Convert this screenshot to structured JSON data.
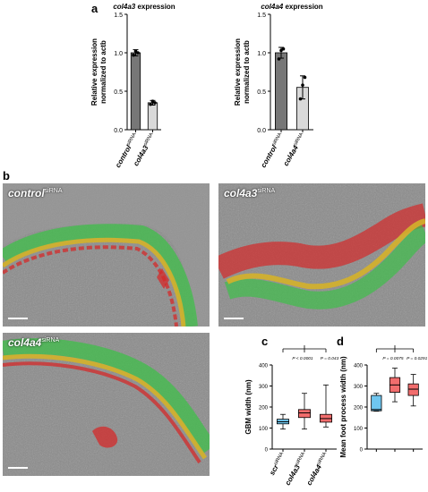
{
  "panel_letters": {
    "a": "a",
    "b": "b",
    "c": "c",
    "d": "d"
  },
  "colors": {
    "dark_bar": "#777777",
    "light_bar": "#d9d9d9",
    "blue_box": "#6fc6ef",
    "red_box": "#f26d6d",
    "em_background": "#8a8a8a",
    "green_overlay": "#3fbf4a",
    "yellow_overlay": "#d4b12a",
    "red_overlay": "#d42a2a"
  },
  "em_panels": [
    {
      "id": "control",
      "label_main": "control",
      "label_sup": "siRNA"
    },
    {
      "id": "col4a3",
      "label_main": "col4a3",
      "label_sup": "siRNA"
    },
    {
      "id": "col4a4",
      "label_main": "col4a4",
      "label_sup": "siRNA"
    }
  ],
  "chart_data": [
    {
      "type": "bar",
      "title": "col4a3 expression",
      "ylabel": "Relative expression normalized to actb",
      "ylim": [
        0,
        1.5
      ],
      "yticks": [
        "0.0",
        "0.5",
        "1.0",
        "1.5"
      ],
      "categories": [
        "control siRNA",
        "col4a3 siRNA"
      ],
      "values": [
        1.0,
        0.35
      ],
      "errors": [
        0.04,
        0.03
      ],
      "points": [
        [
          0.97,
          1.02,
          1.0
        ],
        [
          0.33,
          0.37,
          0.35
        ]
      ]
    },
    {
      "type": "bar",
      "title": "col4a4 expression",
      "ylabel": "Relative expression normalized to actb",
      "ylim": [
        0,
        1.5
      ],
      "yticks": [
        "0.0",
        "0.5",
        "1.0",
        "1.5"
      ],
      "categories": [
        "control siRNA",
        "col4a4 siRNA"
      ],
      "values": [
        1.0,
        0.55
      ],
      "errors": [
        0.07,
        0.15
      ],
      "points": [
        [
          0.92,
          1.03,
          1.05
        ],
        [
          0.4,
          0.58,
          0.68
        ]
      ]
    },
    {
      "type": "box",
      "ylabel": "GBM width (nm)",
      "ylim": [
        0,
        400
      ],
      "yticks": [
        "0",
        "100",
        "200",
        "300",
        "400"
      ],
      "categories": [
        "scr siRNA",
        "col4a3 siRNA",
        "col4a4 siRNA"
      ],
      "boxes": [
        {
          "min": 95,
          "q1": 120,
          "median": 130,
          "q3": 142,
          "max": 165
        },
        {
          "min": 95,
          "q1": 150,
          "median": 172,
          "q3": 188,
          "max": 265
        },
        {
          "min": 105,
          "q1": 128,
          "median": 145,
          "q3": 165,
          "max": 305
        }
      ],
      "annotations": [
        "P < 0.0001",
        "P = 0.043"
      ]
    },
    {
      "type": "box",
      "ylabel": "Mean foot process width (nm)",
      "ylim": [
        0,
        400
      ],
      "yticks": [
        "0",
        "100",
        "200",
        "300",
        "400"
      ],
      "categories": [
        "",
        "",
        ""
      ],
      "boxes": [
        {
          "min": 180,
          "q1": 182,
          "median": 188,
          "q3": 255,
          "max": 265
        },
        {
          "min": 225,
          "q1": 270,
          "median": 305,
          "q3": 340,
          "max": 385
        },
        {
          "min": 205,
          "q1": 255,
          "median": 285,
          "q3": 310,
          "max": 355
        }
      ],
      "annotations": [
        "P = 0.0075",
        "P = 0.0291"
      ]
    }
  ]
}
